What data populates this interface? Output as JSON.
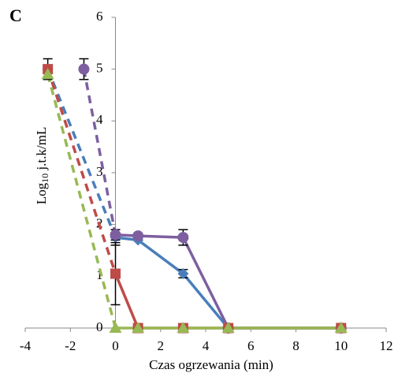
{
  "chart_data": {
    "type": "line",
    "panel_label": "C",
    "xlabel": "Czas ogrzewania (min)",
    "ylabel": {
      "main": "Log",
      "sub": "10",
      "rest": " j.t.k/mL"
    },
    "xlim": [
      -4,
      12
    ],
    "xticks": [
      -4,
      -2,
      0,
      2,
      4,
      6,
      8,
      10,
      12
    ],
    "ylim": [
      0,
      6
    ],
    "yticks": [
      0,
      1,
      2,
      3,
      4,
      5,
      6
    ],
    "first_segment_dashed": true,
    "error_bar_color": "#000000",
    "series": [
      {
        "color": "#4a7ebb",
        "marker": "diamond",
        "x": [
          -3,
          0,
          1,
          3,
          5,
          10
        ],
        "values": [
          5,
          1.75,
          1.7,
          1.05,
          0,
          0
        ],
        "errors": [
          null,
          0.15,
          null,
          0.08,
          null,
          null
        ]
      },
      {
        "color": "#7d5fa0",
        "marker": "circle",
        "x": [
          -1.4,
          0,
          1,
          3,
          5,
          10
        ],
        "values": [
          5,
          1.8,
          1.78,
          1.75,
          0,
          0
        ],
        "errors": [
          0.2,
          0.1,
          null,
          0.15,
          null,
          null
        ]
      },
      {
        "color": "#be4b48",
        "marker": "square",
        "x": [
          -3,
          0,
          1,
          3,
          5,
          10
        ],
        "values": [
          5,
          1.05,
          0,
          0,
          0,
          0
        ],
        "errors": [
          0.2,
          0.6,
          null,
          null,
          null,
          null
        ]
      },
      {
        "color": "#98b954",
        "marker": "triangle",
        "x": [
          -3,
          0,
          1,
          3,
          5,
          10
        ],
        "values": [
          4.9,
          0,
          0,
          0,
          0,
          0
        ],
        "errors": [
          null,
          null,
          null,
          null,
          null,
          null
        ]
      }
    ]
  }
}
